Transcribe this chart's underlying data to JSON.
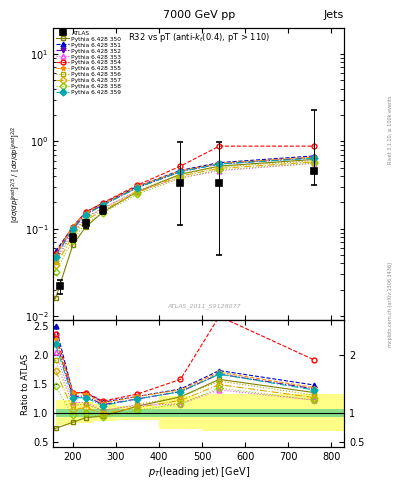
{
  "title_top": "7000 GeV pp",
  "title_right": "Jets",
  "plot_title": "R32 vs pT (anti-k_{t}(0.4), pT > 110)",
  "watermark": "ATLAS_2011_S9128077",
  "atlas_pt": [
    170,
    200,
    230,
    270,
    450,
    540,
    760
  ],
  "atlas_y": [
    0.022,
    0.078,
    0.115,
    0.165,
    0.33,
    0.33,
    0.46
  ],
  "atlas_yerr_lo": [
    0.004,
    0.008,
    0.012,
    0.018,
    0.22,
    0.28,
    0.14
  ],
  "atlas_yerr_hi": [
    0.004,
    0.008,
    0.012,
    0.018,
    0.65,
    0.65,
    1.8
  ],
  "series": [
    {
      "label": "Pythia 6.428 350",
      "color": "#808000",
      "linestyle": "-",
      "marker": "s",
      "fillstyle": "none",
      "pt": [
        160,
        200,
        230,
        270,
        350,
        450,
        540,
        760
      ],
      "y": [
        0.016,
        0.065,
        0.105,
        0.155,
        0.265,
        0.42,
        0.52,
        0.62
      ]
    },
    {
      "label": "Pythia 6.428 351",
      "color": "#0000cc",
      "linestyle": "--",
      "marker": "^",
      "fillstyle": "full",
      "pt": [
        160,
        200,
        230,
        270,
        350,
        450,
        540,
        760
      ],
      "y": [
        0.055,
        0.105,
        0.155,
        0.195,
        0.305,
        0.465,
        0.57,
        0.68
      ]
    },
    {
      "label": "Pythia 6.428 352",
      "color": "#6600aa",
      "linestyle": "-.",
      "marker": "v",
      "fillstyle": "full",
      "pt": [
        160,
        200,
        230,
        270,
        350,
        450,
        540,
        760
      ],
      "y": [
        0.05,
        0.1,
        0.148,
        0.188,
        0.295,
        0.45,
        0.55,
        0.65
      ]
    },
    {
      "label": "Pythia 6.428 353",
      "color": "#ff44ff",
      "linestyle": ":",
      "marker": "^",
      "fillstyle": "none",
      "pt": [
        160,
        200,
        230,
        270,
        350,
        450,
        540,
        760
      ],
      "y": [
        0.045,
        0.092,
        0.135,
        0.172,
        0.268,
        0.38,
        0.46,
        0.56
      ]
    },
    {
      "label": "Pythia 6.428 354",
      "color": "#ff0000",
      "linestyle": "--",
      "marker": "o",
      "fillstyle": "none",
      "pt": [
        160,
        200,
        230,
        270,
        350,
        450,
        540,
        760
      ],
      "y": [
        0.052,
        0.105,
        0.155,
        0.198,
        0.315,
        0.52,
        0.88,
        0.88
      ]
    },
    {
      "label": "Pythia 6.428 355",
      "color": "#ff8800",
      "linestyle": "--",
      "marker": "*",
      "fillstyle": "full",
      "pt": [
        160,
        200,
        230,
        270,
        350,
        450,
        540,
        760
      ],
      "y": [
        0.05,
        0.105,
        0.152,
        0.192,
        0.305,
        0.46,
        0.56,
        0.66
      ]
    },
    {
      "label": "Pythia 6.428 356",
      "color": "#aaaa00",
      "linestyle": ":",
      "marker": "s",
      "fillstyle": "none",
      "pt": [
        160,
        200,
        230,
        270,
        350,
        450,
        540,
        760
      ],
      "y": [
        0.042,
        0.088,
        0.132,
        0.17,
        0.272,
        0.42,
        0.51,
        0.6
      ]
    },
    {
      "label": "Pythia 6.428 357",
      "color": "#ddaa00",
      "linestyle": "-.",
      "marker": "D",
      "fillstyle": "none",
      "pt": [
        160,
        200,
        230,
        270,
        350,
        450,
        540,
        760
      ],
      "y": [
        0.038,
        0.082,
        0.125,
        0.162,
        0.26,
        0.4,
        0.49,
        0.58
      ]
    },
    {
      "label": "Pythia 6.428 358",
      "color": "#88cc00",
      "linestyle": ":",
      "marker": "D",
      "fillstyle": "none",
      "pt": [
        160,
        200,
        230,
        270,
        350,
        450,
        540,
        760
      ],
      "y": [
        0.032,
        0.075,
        0.115,
        0.152,
        0.248,
        0.38,
        0.47,
        0.56
      ]
    },
    {
      "label": "Pythia 6.428 359",
      "color": "#00aaaa",
      "linestyle": "-.",
      "marker": "D",
      "fillstyle": "full",
      "pt": [
        160,
        200,
        230,
        270,
        350,
        450,
        540,
        760
      ],
      "y": [
        0.048,
        0.098,
        0.145,
        0.185,
        0.295,
        0.45,
        0.55,
        0.64
      ]
    }
  ],
  "green_band_edges": [
    160,
    200,
    250,
    300,
    400,
    500,
    600,
    830
  ],
  "green_band_lo": [
    0.93,
    0.93,
    0.93,
    0.93,
    0.93,
    0.93,
    0.93,
    0.93
  ],
  "green_band_hi": [
    1.07,
    1.07,
    1.07,
    1.07,
    1.07,
    1.07,
    1.07,
    1.07
  ],
  "yellow_band_edges": [
    160,
    200,
    250,
    300,
    400,
    500,
    600,
    830
  ],
  "yellow_band_lo": [
    0.78,
    0.82,
    0.85,
    0.88,
    0.72,
    0.68,
    0.68,
    0.68
  ],
  "yellow_band_hi": [
    1.22,
    1.18,
    1.15,
    1.12,
    1.28,
    1.32,
    1.32,
    1.32
  ],
  "xlim": [
    155,
    830
  ],
  "ylim_main": [
    0.009,
    20
  ],
  "ylim_ratio": [
    0.4,
    2.6
  ],
  "xticks": [
    200,
    300,
    400,
    500,
    600,
    700,
    800
  ],
  "ratio_yticks": [
    0.5,
    1.0,
    2.0
  ],
  "ratio_ytick_labels": [
    "0.5",
    "1",
    "2"
  ]
}
